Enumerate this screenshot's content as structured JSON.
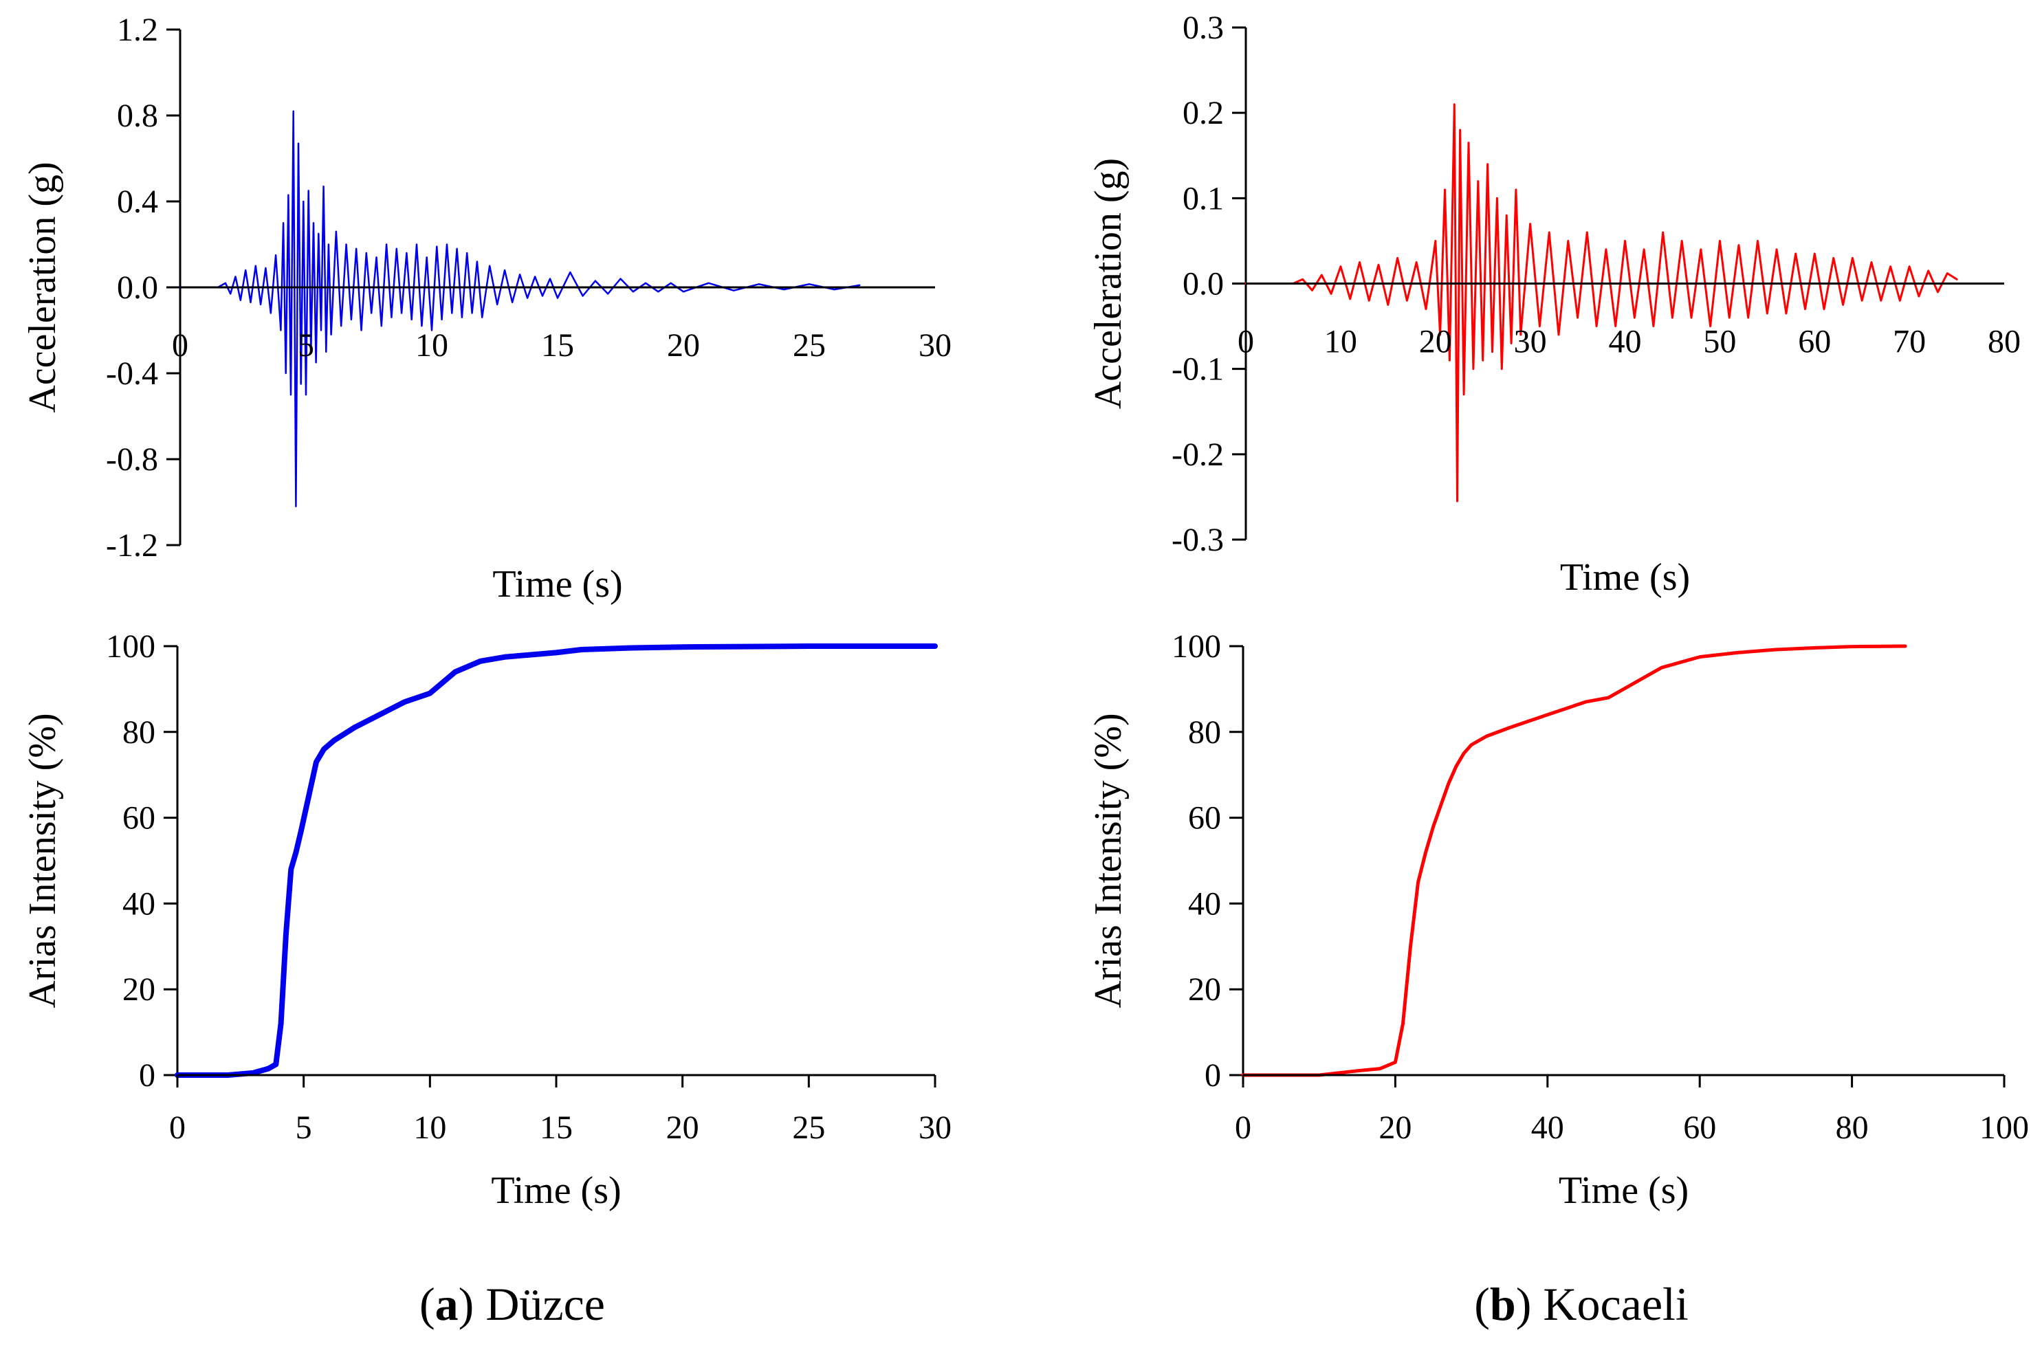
{
  "captions": {
    "a_letter": "a",
    "a_name": "Düzce",
    "b_letter": "b",
    "b_name": "Kocaeli"
  },
  "colors": {
    "duzce": "#0000ee",
    "kocaeli": "#ff0000",
    "axis": "#000000"
  },
  "chart_data": [
    {
      "id": "duzce-acc",
      "type": "line",
      "title": "",
      "xlabel": "Time (s)",
      "ylabel": "Acceleration (g)",
      "xlim": [
        0,
        30
      ],
      "ylim": [
        -1.2,
        1.2
      ],
      "xticks": [
        0,
        5,
        10,
        15,
        20,
        25,
        30
      ],
      "xtick_labels": [
        "0",
        "5",
        "10",
        "15",
        "20",
        "25",
        "30"
      ],
      "yticks": [
        1.2,
        0.8,
        0.4,
        0.0,
        -0.4,
        -0.8,
        -1.2
      ],
      "ytick_labels": [
        "1.2",
        "0.8",
        "0.4",
        "0.0",
        "-0.4",
        "-0.8",
        "-1.2"
      ],
      "xaxis_at_zero": true,
      "series": [
        {
          "name": "Düzce acceleration",
          "x": [
            0,
            1.5,
            1.8,
            2.0,
            2.2,
            2.4,
            2.6,
            2.8,
            3.0,
            3.2,
            3.4,
            3.6,
            3.8,
            4.0,
            4.1,
            4.2,
            4.3,
            4.4,
            4.5,
            4.6,
            4.7,
            4.8,
            4.9,
            5.0,
            5.1,
            5.2,
            5.3,
            5.4,
            5.5,
            5.6,
            5.7,
            5.8,
            5.9,
            6.0,
            6.2,
            6.4,
            6.6,
            6.8,
            7.0,
            7.2,
            7.4,
            7.6,
            7.8,
            8.0,
            8.2,
            8.4,
            8.6,
            8.8,
            9.0,
            9.2,
            9.4,
            9.6,
            9.8,
            10.0,
            10.2,
            10.4,
            10.6,
            10.8,
            11.0,
            11.2,
            11.4,
            11.6,
            11.8,
            12.0,
            12.3,
            12.6,
            12.9,
            13.2,
            13.5,
            13.8,
            14.1,
            14.4,
            14.7,
            15.0,
            15.5,
            16.0,
            16.5,
            17.0,
            17.5,
            18.0,
            18.5,
            19.0,
            19.5,
            20.0,
            21.0,
            22.0,
            23.0,
            24.0,
            25.0,
            26.0,
            27.0
          ],
          "values": [
            0,
            0,
            0.02,
            -0.03,
            0.05,
            -0.06,
            0.08,
            -0.07,
            0.1,
            -0.08,
            0.09,
            -0.12,
            0.15,
            -0.2,
            0.3,
            -0.4,
            0.43,
            -0.5,
            0.82,
            -1.02,
            0.67,
            -0.45,
            0.4,
            -0.5,
            0.45,
            -0.3,
            0.3,
            -0.35,
            0.25,
            -0.2,
            0.47,
            -0.3,
            0.2,
            -0.22,
            0.26,
            -0.18,
            0.2,
            -0.15,
            0.18,
            -0.2,
            0.16,
            -0.12,
            0.14,
            -0.18,
            0.2,
            -0.14,
            0.18,
            -0.12,
            0.16,
            -0.15,
            0.2,
            -0.18,
            0.14,
            -0.2,
            0.19,
            -0.15,
            0.2,
            -0.12,
            0.18,
            -0.14,
            0.16,
            -0.12,
            0.12,
            -0.14,
            0.1,
            -0.08,
            0.08,
            -0.07,
            0.06,
            -0.05,
            0.05,
            -0.04,
            0.04,
            -0.05,
            0.07,
            -0.04,
            0.03,
            -0.03,
            0.04,
            -0.02,
            0.02,
            -0.02,
            0.02,
            -0.02,
            0.02,
            -0.015,
            0.015,
            -0.01,
            0.015,
            -0.01,
            0.01
          ]
        }
      ]
    },
    {
      "id": "duzce-arias",
      "type": "line",
      "title": "",
      "xlabel": "Time (s)",
      "ylabel": "Arias Intensity (%)",
      "xlim": [
        0,
        30
      ],
      "ylim": [
        0,
        100
      ],
      "xticks": [
        0,
        5,
        10,
        15,
        20,
        25,
        30
      ],
      "xtick_labels": [
        "0",
        "5",
        "10",
        "15",
        "20",
        "25",
        "30"
      ],
      "yticks": [
        100,
        80,
        60,
        40,
        20,
        0
      ],
      "ytick_labels": [
        "100",
        "80",
        "60",
        "40",
        "20",
        "0"
      ],
      "xaxis_at_zero": false,
      "series": [
        {
          "name": "Düzce Arias intensity",
          "x": [
            0,
            2,
            3,
            3.6,
            3.9,
            4.1,
            4.3,
            4.5,
            4.7,
            4.9,
            5.2,
            5.5,
            5.8,
            6.2,
            7,
            8,
            9,
            10,
            11,
            12,
            13,
            14,
            15,
            16,
            18,
            20,
            25,
            30
          ],
          "values": [
            0,
            0,
            0.5,
            1.5,
            2.5,
            12,
            33,
            48,
            52,
            57,
            65,
            73,
            76,
            78,
            81,
            84,
            87,
            89,
            94,
            96.5,
            97.5,
            98,
            98.5,
            99.2,
            99.6,
            99.8,
            100,
            100
          ]
        }
      ]
    },
    {
      "id": "kocaeli-acc",
      "type": "line",
      "title": "",
      "xlabel": "Time (s)",
      "ylabel": "Acceleration (g)",
      "xlim": [
        0,
        80
      ],
      "ylim": [
        -0.3,
        0.3
      ],
      "xticks": [
        0,
        10,
        20,
        30,
        40,
        50,
        60,
        70,
        80
      ],
      "xtick_labels": [
        "0",
        "10",
        "20",
        "30",
        "40",
        "50",
        "60",
        "70",
        "80"
      ],
      "yticks": [
        0.3,
        0.2,
        0.1,
        0.0,
        -0.1,
        -0.2,
        -0.3
      ],
      "ytick_labels": [
        "0.3",
        "0.2",
        "0.1",
        "0.0",
        "-0.1",
        "-0.2",
        "-0.3"
      ],
      "xaxis_at_zero": true,
      "series": [
        {
          "name": "Kocaeli acceleration",
          "x": [
            0,
            5,
            6,
            7,
            8,
            9,
            10,
            11,
            12,
            13,
            14,
            15,
            16,
            17,
            18,
            19,
            20,
            20.5,
            21,
            21.5,
            22,
            22.3,
            22.6,
            23,
            23.5,
            24,
            24.5,
            25,
            25.5,
            26,
            26.5,
            27,
            27.5,
            28,
            28.5,
            29,
            30,
            31,
            32,
            33,
            34,
            35,
            36,
            37,
            38,
            39,
            40,
            41,
            42,
            43,
            44,
            45,
            46,
            47,
            48,
            49,
            50,
            51,
            52,
            53,
            54,
            55,
            56,
            57,
            58,
            59,
            60,
            61,
            62,
            63,
            64,
            65,
            66,
            67,
            68,
            69,
            70,
            71,
            72,
            73,
            74,
            75
          ],
          "values": [
            0,
            0,
            0.005,
            -0.008,
            0.01,
            -0.012,
            0.02,
            -0.018,
            0.025,
            -0.02,
            0.022,
            -0.025,
            0.03,
            -0.02,
            0.025,
            -0.03,
            0.05,
            -0.06,
            0.11,
            -0.09,
            0.21,
            -0.255,
            0.18,
            -0.13,
            0.165,
            -0.1,
            0.12,
            -0.09,
            0.14,
            -0.08,
            0.1,
            -0.1,
            0.08,
            -0.07,
            0.11,
            -0.06,
            0.07,
            -0.05,
            0.06,
            -0.06,
            0.05,
            -0.04,
            0.06,
            -0.05,
            0.04,
            -0.05,
            0.05,
            -0.04,
            0.04,
            -0.05,
            0.06,
            -0.04,
            0.05,
            -0.04,
            0.04,
            -0.05,
            0.05,
            -0.04,
            0.045,
            -0.04,
            0.05,
            -0.035,
            0.04,
            -0.035,
            0.035,
            -0.03,
            0.035,
            -0.03,
            0.03,
            -0.025,
            0.03,
            -0.02,
            0.025,
            -0.02,
            0.02,
            -0.02,
            0.02,
            -0.015,
            0.015,
            -0.01,
            0.012,
            0.005
          ]
        }
      ]
    },
    {
      "id": "kocaeli-arias",
      "type": "line",
      "title": "",
      "xlabel": "Time (s)",
      "ylabel": "Arias Intensity (%)",
      "xlim": [
        0,
        100
      ],
      "ylim": [
        0,
        100
      ],
      "xticks": [
        0,
        20,
        40,
        60,
        80,
        100
      ],
      "xtick_labels": [
        "0",
        "20",
        "40",
        "60",
        "80",
        "100"
      ],
      "yticks": [
        100,
        80,
        60,
        40,
        20,
        0
      ],
      "ytick_labels": [
        "100",
        "80",
        "60",
        "40",
        "20",
        "0"
      ],
      "xaxis_at_zero": false,
      "series": [
        {
          "name": "Kocaeli Arias intensity",
          "x": [
            0,
            10,
            15,
            18,
            20,
            21,
            22,
            23,
            24,
            25,
            26,
            27,
            28,
            29,
            30,
            32,
            35,
            40,
            45,
            48,
            50,
            55,
            60,
            65,
            70,
            75,
            80,
            87
          ],
          "values": [
            0,
            0,
            1,
            1.5,
            3,
            12,
            30,
            45,
            52,
            58,
            63,
            68,
            72,
            75,
            77,
            79,
            81,
            84,
            87,
            88,
            90,
            95,
            97.5,
            98.5,
            99.2,
            99.6,
            99.9,
            100
          ]
        }
      ]
    }
  ]
}
